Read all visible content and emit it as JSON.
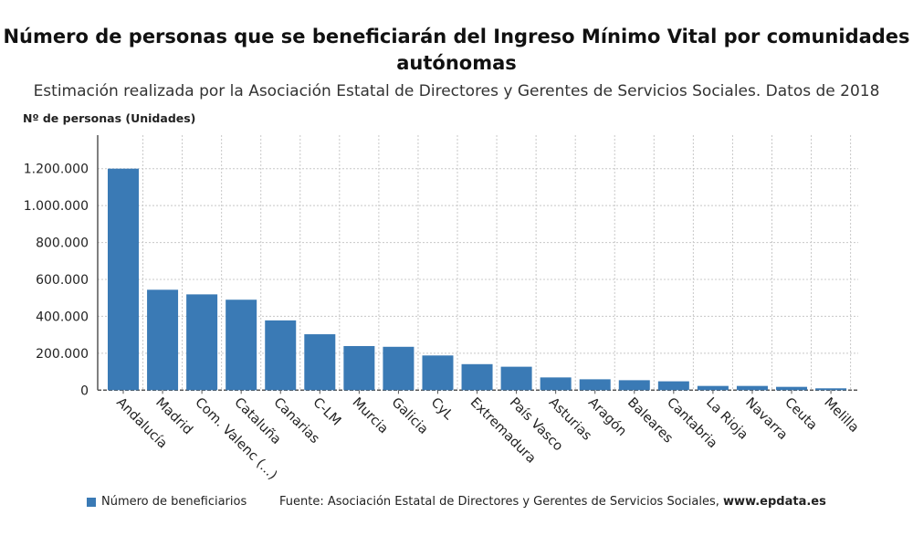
{
  "chart_data": {
    "type": "bar",
    "title": "Número de personas que se beneficiarán del Ingreso Mínimo Vital por comunidades autónomas",
    "subtitle": "Estimación realizada por la Asociación Estatal de Directores y Gerentes de Servicios Sociales. Datos de 2018",
    "ylabel": "Nº de personas (Unidades)",
    "xlabel": "",
    "ylim": [
      0,
      1380000
    ],
    "yticks": [
      0,
      200000,
      400000,
      600000,
      800000,
      1000000,
      1200000
    ],
    "ytick_labels": [
      "0",
      "200.000",
      "400.000",
      "600.000",
      "800.000",
      "1.000.000",
      "1.200.000"
    ],
    "grid": true,
    "categories": [
      "Andalucía",
      "Madrid",
      "Com. Valenc (...)",
      "Cataluña",
      "Canarias",
      "C-LM",
      "Murcia",
      "Galicia",
      "CyL",
      "Extremadura",
      "País Vasco",
      "Asturias",
      "Aragón",
      "Baleares",
      "Cantabria",
      "La Rioja",
      "Navarra",
      "Ceuta",
      "Melilla"
    ],
    "series": [
      {
        "name": "Número de beneficiarios",
        "color": "#3a7ab5",
        "values": [
          1200000,
          544000,
          519000,
          490000,
          378000,
          303000,
          239000,
          235000,
          188000,
          141000,
          127000,
          69000,
          59000,
          54000,
          48000,
          23000,
          23000,
          18000,
          10000
        ]
      }
    ],
    "legend_position": "bottom-left",
    "source_prefix": "Fuente: Asociación Estatal de Directores y Gerentes de Servicios Sociales, ",
    "source_site": "www.epdata.es"
  }
}
